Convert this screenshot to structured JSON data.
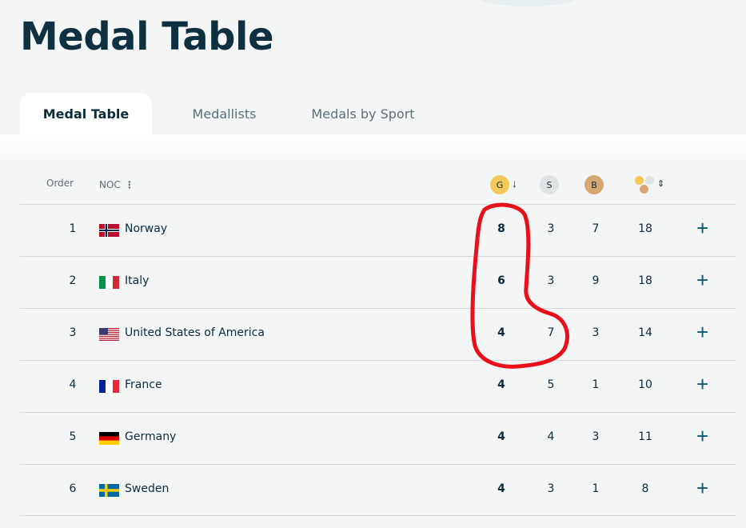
{
  "page": {
    "title": "Medal Table"
  },
  "tabs": [
    {
      "label": "Medal Table",
      "active": true
    },
    {
      "label": "Medallists",
      "active": false
    },
    {
      "label": "Medals by Sport",
      "active": false
    }
  ],
  "table": {
    "headers": {
      "order": "Order",
      "noc": "NOC",
      "gold": "G",
      "silver": "S",
      "bronze": "B"
    },
    "colors": {
      "gold": "#f5c85a",
      "silver": "#e0e2e3",
      "bronze": "#d7a774",
      "accent": "#0e5a6f",
      "annotation": "#e8101a"
    },
    "rows": [
      {
        "order": "1",
        "name": "Norway",
        "flag": "norway",
        "gold": "8",
        "silver": "3",
        "bronze": "7",
        "total": "18"
      },
      {
        "order": "2",
        "name": "Italy",
        "flag": "italy",
        "gold": "6",
        "silver": "3",
        "bronze": "9",
        "total": "18"
      },
      {
        "order": "3",
        "name": "United States of America",
        "flag": "usa",
        "gold": "4",
        "silver": "7",
        "bronze": "3",
        "total": "14"
      },
      {
        "order": "4",
        "name": "France",
        "flag": "france",
        "gold": "4",
        "silver": "5",
        "bronze": "1",
        "total": "10"
      },
      {
        "order": "5",
        "name": "Germany",
        "flag": "germany",
        "gold": "4",
        "silver": "4",
        "bronze": "3",
        "total": "11"
      },
      {
        "order": "6",
        "name": "Sweden",
        "flag": "sweden",
        "gold": "4",
        "silver": "3",
        "bronze": "1",
        "total": "8"
      }
    ]
  }
}
